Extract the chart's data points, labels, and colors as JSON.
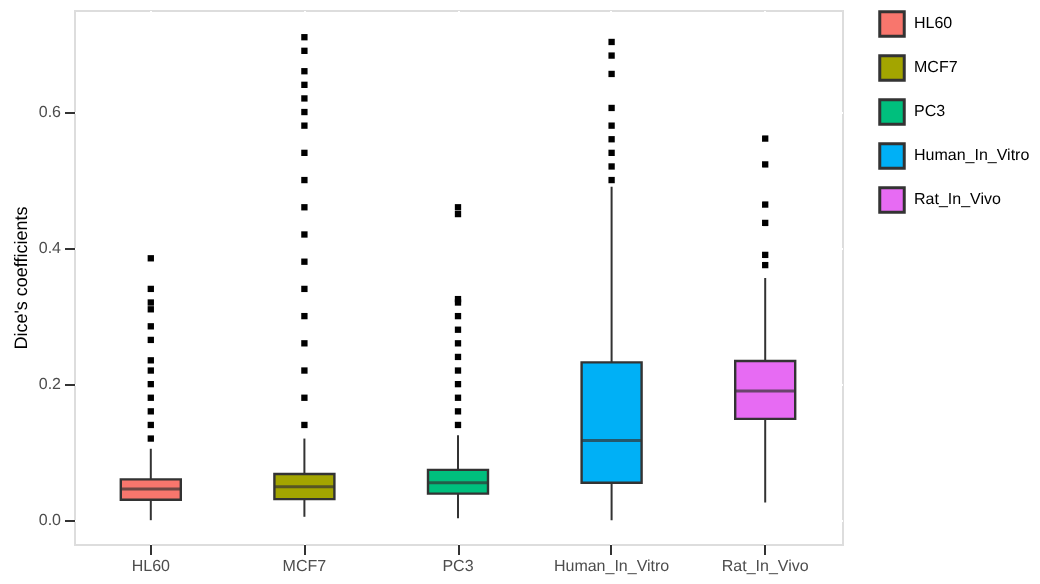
{
  "chart_data": {
    "type": "box",
    "ylabel": "Dice's coefficients",
    "categories": [
      "HL60",
      "MCF7",
      "PC3",
      "Human_In_Vitro",
      "Rat_In_Vivo"
    ],
    "series": [
      {
        "name": "HL60",
        "color": "#f8766d",
        "boxes": [
          {
            "low": 0.0,
            "q1": 0.03,
            "median": 0.046,
            "q3": 0.06,
            "high": 0.105,
            "outliers": [
              0.12,
              0.14,
              0.16,
              0.18,
              0.2,
              0.22,
              0.235,
              0.265,
              0.285,
              0.31,
              0.32,
              0.34,
              0.385
            ]
          },
          null,
          null,
          null,
          null
        ]
      },
      {
        "name": "MCF7",
        "color": "#a3a500",
        "boxes": [
          null,
          {
            "low": 0.005,
            "q1": 0.031,
            "median": 0.049,
            "q3": 0.068,
            "high": 0.12,
            "outliers": [
              0.14,
              0.18,
              0.22,
              0.26,
              0.3,
              0.34,
              0.38,
              0.42,
              0.46,
              0.5,
              0.54,
              0.58,
              0.6,
              0.62,
              0.64,
              0.66,
              0.69,
              0.71
            ]
          },
          null,
          null,
          null
        ]
      },
      {
        "name": "PC3",
        "color": "#00bf7d",
        "boxes": [
          null,
          null,
          {
            "low": 0.003,
            "q1": 0.039,
            "median": 0.055,
            "q3": 0.074,
            "high": 0.125,
            "outliers": [
              0.14,
              0.16,
              0.18,
              0.2,
              0.22,
              0.24,
              0.26,
              0.28,
              0.3,
              0.32,
              0.325,
              0.45,
              0.46
            ]
          },
          null,
          null
        ]
      },
      {
        "name": "Human_In_Vitro",
        "color": "#00b0f6",
        "boxes": [
          null,
          null,
          null,
          {
            "low": 0.0,
            "q1": 0.055,
            "median": 0.117,
            "q3": 0.232,
            "high": 0.49,
            "outliers": [
              0.5,
              0.52,
              0.54,
              0.56,
              0.58,
              0.606,
              0.656,
              0.683,
              0.703
            ]
          },
          null
        ]
      },
      {
        "name": "Rat_In_Vivo",
        "color": "#e76bf3",
        "boxes": [
          null,
          null,
          null,
          null,
          {
            "low": 0.026,
            "q1": 0.149,
            "median": 0.19,
            "q3": 0.234,
            "high": 0.356,
            "outliers": [
              0.375,
              0.39,
              0.437,
              0.464,
              0.523,
              0.561
            ]
          }
        ]
      }
    ],
    "ylim": [
      -0.035,
      0.75
    ],
    "yticks": [
      {
        "value": 0,
        "label": "0.0"
      },
      {
        "value": 0.2,
        "label": "0.2"
      },
      {
        "value": 0.4,
        "label": "0.4"
      },
      {
        "value": 0.6,
        "label": "0.6"
      }
    ],
    "grid": true,
    "legend": "right"
  }
}
